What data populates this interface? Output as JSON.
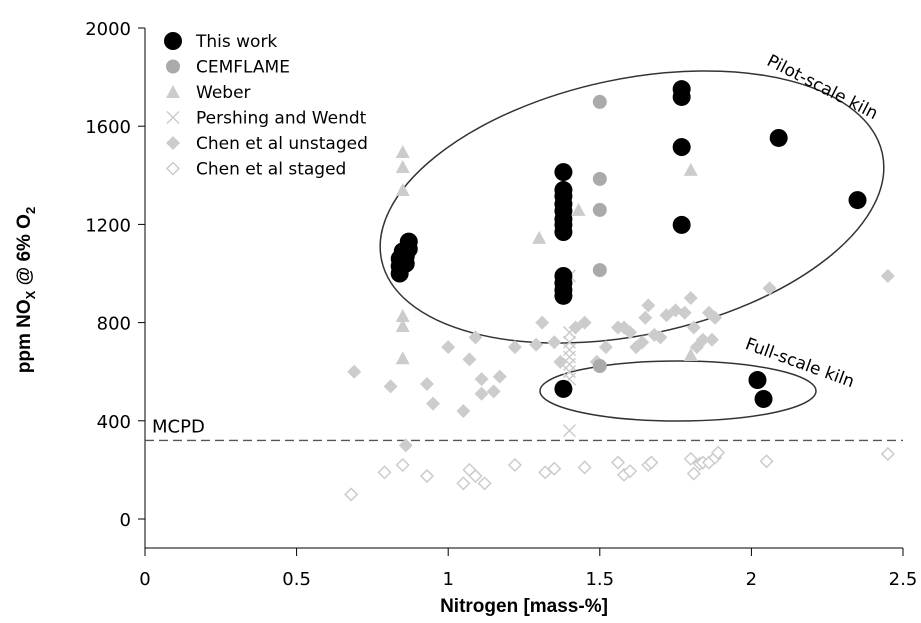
{
  "chart_data": {
    "type": "scatter",
    "xlabel": "Nitrogen [mass-%]",
    "ylabel": [
      "ppm NO",
      "X",
      " @ 6% O",
      "2"
    ],
    "xlim": [
      0,
      2.5
    ],
    "xticks": [
      0,
      0.5,
      1,
      1.5,
      2,
      2.5
    ],
    "ylim": [
      0,
      2000
    ],
    "yticks": [
      0,
      400,
      800,
      1200,
      1600,
      2000
    ],
    "grid": false,
    "legend": "upper left",
    "hline": {
      "value": 320,
      "label": "MCPD"
    },
    "annotations": [
      "Pilot-scale kiln",
      "Full-scale kiln"
    ],
    "series": [
      {
        "name": "This work",
        "color": "#000000",
        "marker": "circle",
        "x": [
          0.84,
          0.84,
          0.84,
          0.85,
          0.86,
          0.86,
          0.87,
          0.87,
          1.38,
          1.38,
          1.38,
          1.38,
          1.38,
          1.38,
          1.38,
          1.38,
          1.38,
          1.38,
          1.38,
          1.38,
          1.38,
          1.77,
          1.77,
          1.77,
          1.77,
          2.09,
          2.35,
          2.02,
          2.04
        ],
        "values": [
          1000,
          1030,
          1060,
          1090,
          1040,
          1070,
          1100,
          1130,
          1413,
          1340,
          1315,
          1283,
          1255,
          1222,
          1198,
          1169,
          990,
          961,
          933,
          909,
          530,
          1751,
          1719,
          1515,
          1198,
          1552,
          1299,
          566,
          489
        ]
      },
      {
        "name": "CEMFLAME",
        "color": "#aaaaaa",
        "marker": "circle",
        "x": [
          1.5,
          1.5,
          1.5,
          1.5,
          1.5
        ],
        "values": [
          1699,
          1385,
          1259,
          1014,
          623
        ]
      },
      {
        "name": "Weber",
        "color": "#cccccc",
        "marker": "triangle",
        "x": [
          0.85,
          0.85,
          0.85,
          0.85,
          0.85,
          0.85,
          1.3,
          1.43,
          1.8,
          1.8
        ],
        "values": [
          1495,
          1434,
          1340,
          827,
          786,
          655,
          1145,
          1259,
          1422,
          668
        ]
      },
      {
        "name": "Pershing and Wendt",
        "color": "#cccccc",
        "marker": "cross",
        "x": [
          1.4,
          1.4,
          1.4,
          1.4,
          1.4,
          1.4,
          1.4,
          1.4,
          1.4
        ],
        "values": [
          990,
          760,
          720,
          690,
          660,
          630,
          600,
          570,
          360
        ]
      },
      {
        "name": "Chen et al unstaged",
        "color": "#cccccc",
        "marker": "diamond",
        "x": [
          0.69,
          0.81,
          0.86,
          0.93,
          0.95,
          1.0,
          1.05,
          1.07,
          1.09,
          1.11,
          1.11,
          1.15,
          1.17,
          1.22,
          1.29,
          1.31,
          1.35,
          1.37,
          1.42,
          1.45,
          1.49,
          1.52,
          1.56,
          1.58,
          1.6,
          1.62,
          1.64,
          1.65,
          1.66,
          1.68,
          1.7,
          1.72,
          1.75,
          1.78,
          1.8,
          1.81,
          1.82,
          1.84,
          1.86,
          1.87,
          1.88,
          2.06,
          2.45
        ],
        "values": [
          600,
          540,
          300,
          550,
          470,
          700,
          440,
          650,
          740,
          570,
          510,
          520,
          580,
          700,
          710,
          800,
          720,
          640,
          780,
          800,
          640,
          700,
          780,
          780,
          760,
          700,
          720,
          820,
          870,
          750,
          740,
          830,
          850,
          840,
          900,
          780,
          700,
          730,
          840,
          730,
          820,
          940,
          990
        ]
      },
      {
        "name": "Chen et al staged",
        "color": "#cccccc",
        "marker": "diamond-open",
        "x": [
          0.68,
          0.79,
          0.85,
          0.93,
          1.05,
          1.07,
          1.09,
          1.12,
          1.22,
          1.32,
          1.35,
          1.45,
          1.56,
          1.58,
          1.6,
          1.66,
          1.67,
          1.8,
          1.81,
          1.83,
          1.84,
          1.86,
          1.88,
          1.89,
          2.05,
          2.45
        ],
        "values": [
          100,
          190,
          220,
          175,
          145,
          200,
          175,
          145,
          220,
          190,
          205,
          210,
          230,
          180,
          195,
          220,
          230,
          245,
          185,
          225,
          230,
          230,
          250,
          270,
          235,
          265
        ]
      }
    ]
  }
}
